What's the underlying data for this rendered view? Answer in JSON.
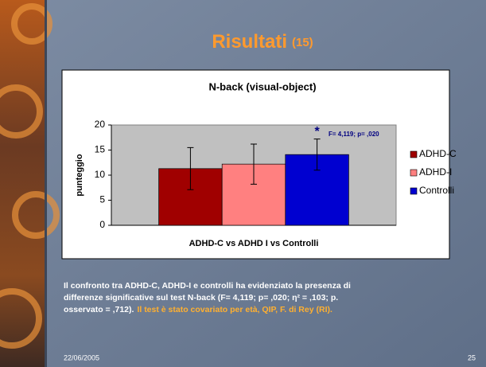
{
  "slide_title": "Risultati",
  "slide_number_label": "(15)",
  "chart_data": {
    "type": "bar",
    "title": "N-back (visual-object)",
    "y_label": "punteggio",
    "categories": [
      "ADHD-C vs ADHD I vs Controlli"
    ],
    "series": [
      {
        "name": "ADHD-C",
        "color": "#a00000",
        "values": [
          11.3
        ],
        "errors": [
          4.2
        ]
      },
      {
        "name": "ADHD-I",
        "color": "#ff8080",
        "values": [
          12.2
        ],
        "errors": [
          4.0
        ]
      },
      {
        "name": "Controlli",
        "color": "#0000d0",
        "values": [
          14.1
        ],
        "errors": [
          3.1
        ]
      }
    ],
    "ylim": [
      0,
      20
    ],
    "yticks": [
      0,
      5,
      10,
      15,
      20
    ],
    "annotation_marker": "*",
    "annotation": "F= 4,119; p= ,020"
  },
  "body": [
    "Il confronto tra ADHD-C, ADHD-I e controlli ha evidenziato la presenza di",
    "differenze significative sul test N-back (F= 4,119; p= ,020;  η² = ,103; p.",
    "osservato = ,712)."
  ],
  "body_highlight": "Il test è stato covariato per età, QIP, F. di Rey (RI).",
  "footer": {
    "date": "22/06/2005",
    "page": "25"
  }
}
